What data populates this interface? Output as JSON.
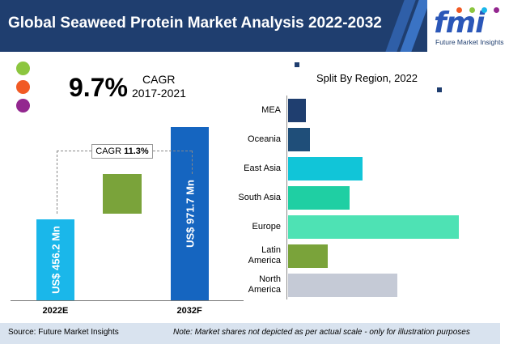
{
  "header": {
    "title": "Global Seaweed Protein Market Analysis 2022-2032"
  },
  "logo": {
    "mark": "fmi",
    "tagline": "Future Market Insights"
  },
  "colors": {
    "header_bg": "#1f3e6f",
    "dot1": "#8cc63f",
    "dot2": "#f15a24",
    "dot3": "#93278f",
    "bar_2022": "#1ab7ea",
    "bar_2032": "#1565c0",
    "mid_box": "#7aa33a",
    "footer_bg": "#d9e3ef"
  },
  "cagr": {
    "value": "9.7%",
    "label": "CAGR",
    "period": "2017-2021"
  },
  "forecast_cagr": {
    "label": "CAGR",
    "value": "11.3%"
  },
  "chart_data": [
    {
      "type": "bar",
      "categories": [
        "2022E",
        "2032F"
      ],
      "values": [
        456.2,
        971.7
      ],
      "value_labels": [
        "US$ 456.2 Mn",
        "US$ 971.7 Mn"
      ],
      "colors": [
        "#1ab7ea",
        "#1565c0"
      ],
      "ylim": [
        0,
        1000
      ]
    },
    {
      "type": "bar",
      "orientation": "horizontal",
      "title": "Split By Region, 2022",
      "categories": [
        "MEA",
        "Oceania",
        "East Asia",
        "South Asia",
        "Europe",
        "Latin America",
        "North America"
      ],
      "category_lines": [
        [
          "MEA"
        ],
        [
          "Oceania"
        ],
        [
          "East Asia"
        ],
        [
          "South Asia"
        ],
        [
          "Europe"
        ],
        [
          "Latin",
          "America"
        ],
        [
          "North",
          "America"
        ]
      ],
      "values": [
        2,
        2.5,
        8.5,
        7,
        19.5,
        4.5,
        12.5
      ],
      "colors": [
        "#1f3e6f",
        "#1f4e79",
        "#11c5d8",
        "#1fcfa3",
        "#4ee2b4",
        "#7aa33a",
        "#c5cad6"
      ],
      "xlim": [
        0,
        20
      ]
    }
  ],
  "footer": {
    "source": "Source: Future Market Insights",
    "note": "Note: Market shares not depicted as per actual scale - only for illustration purposes"
  }
}
